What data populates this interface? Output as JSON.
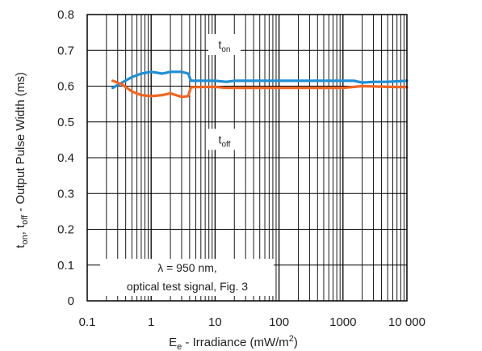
{
  "chart_data": {
    "type": "line",
    "title": "",
    "xscale": "log",
    "xlim": [
      0.1,
      10000
    ],
    "ylim": [
      0,
      0.8
    ],
    "grid": true,
    "x_tick_labels": [
      "0.1",
      "1",
      "10",
      "100",
      "1000",
      "10 000"
    ],
    "y_tick_labels": [
      "0",
      "0.1",
      "0.2",
      "0.3",
      "0.4",
      "0.5",
      "0.6",
      "0.7",
      "0.8"
    ],
    "xlabel": {
      "main": "E",
      "sub": "e",
      "rest": " - Irradiance (mW/m",
      "sup": "2",
      "end": ")"
    },
    "ylabel": {
      "t1": "t",
      "s1": "on",
      "t2": ", t",
      "s2": "off",
      "t3": " - Output Pulse Width (ms)"
    },
    "annotations": [
      {
        "base": "t",
        "sub": "on",
        "series": 0
      },
      {
        "base": "t",
        "sub": "off",
        "series": 1
      }
    ],
    "note_lines": [
      "λ = 950 nm,",
      "optical test signal, Fig. 3"
    ],
    "series": [
      {
        "name": "ton",
        "color": "#1f8fd6",
        "points": [
          [
            0.25,
            0.595
          ],
          [
            0.35,
            0.61
          ],
          [
            0.5,
            0.625
          ],
          [
            0.7,
            0.635
          ],
          [
            1,
            0.64
          ],
          [
            1.5,
            0.635
          ],
          [
            2,
            0.64
          ],
          [
            3,
            0.64
          ],
          [
            3.8,
            0.635
          ],
          [
            4.2,
            0.615
          ],
          [
            6,
            0.615
          ],
          [
            10,
            0.615
          ],
          [
            15,
            0.612
          ],
          [
            20,
            0.615
          ],
          [
            50,
            0.615
          ],
          [
            100,
            0.615
          ],
          [
            500,
            0.615
          ],
          [
            1000,
            0.615
          ],
          [
            1500,
            0.615
          ],
          [
            2000,
            0.61
          ],
          [
            3000,
            0.612
          ],
          [
            5000,
            0.612
          ],
          [
            10000,
            0.615
          ]
        ]
      },
      {
        "name": "toff",
        "color": "#f26522",
        "points": [
          [
            0.25,
            0.615
          ],
          [
            0.35,
            0.605
          ],
          [
            0.5,
            0.585
          ],
          [
            0.7,
            0.575
          ],
          [
            1,
            0.572
          ],
          [
            1.5,
            0.575
          ],
          [
            2,
            0.58
          ],
          [
            3,
            0.57
          ],
          [
            3.8,
            0.572
          ],
          [
            4.2,
            0.597
          ],
          [
            10,
            0.598
          ],
          [
            15,
            0.595
          ],
          [
            50,
            0.595
          ],
          [
            100,
            0.595
          ],
          [
            500,
            0.595
          ],
          [
            1000,
            0.595
          ],
          [
            1500,
            0.598
          ],
          [
            2000,
            0.6
          ],
          [
            5000,
            0.598
          ],
          [
            10000,
            0.597
          ]
        ]
      }
    ]
  }
}
